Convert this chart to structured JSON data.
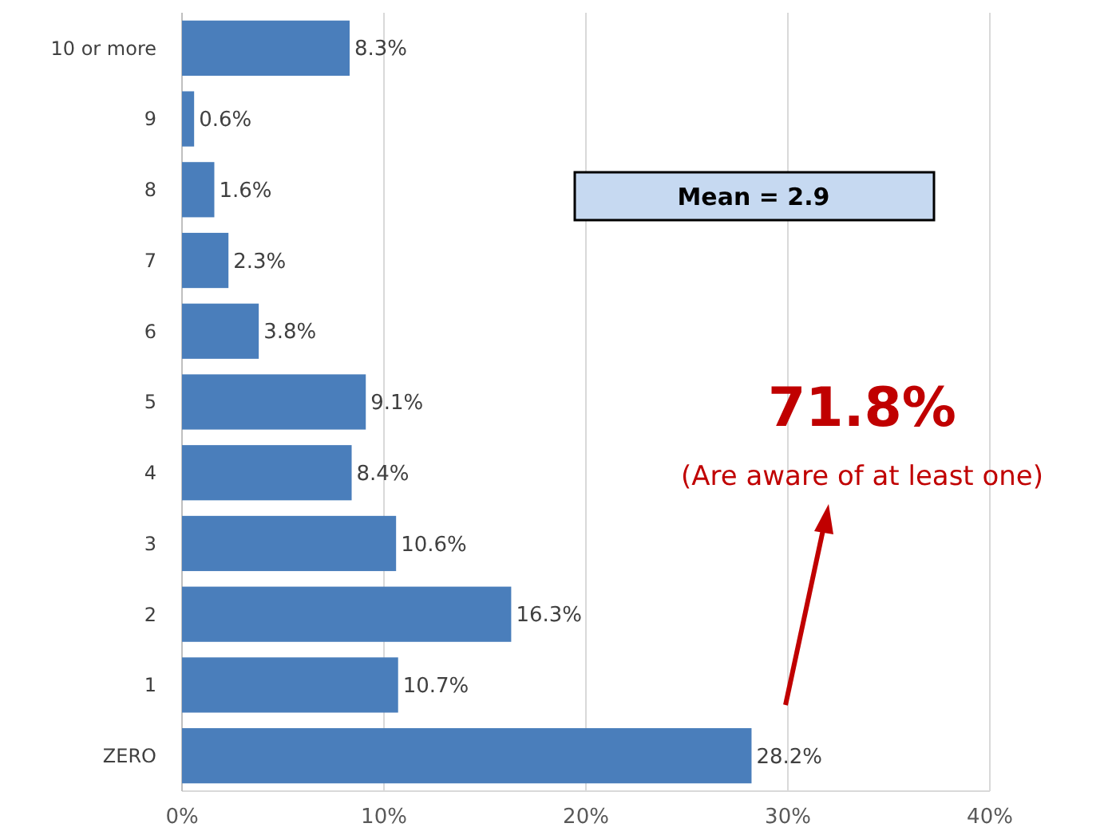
{
  "chart_data": {
    "type": "bar",
    "orientation": "horizontal",
    "categories": [
      "10 or more",
      "9",
      "8",
      "7",
      "6",
      "5",
      "4",
      "3",
      "2",
      "1",
      "ZERO"
    ],
    "values": [
      8.3,
      0.6,
      1.6,
      2.3,
      3.8,
      9.1,
      8.4,
      10.6,
      16.3,
      10.7,
      28.2
    ],
    "value_labels": [
      "8.3%",
      "0.6%",
      "1.6%",
      "2.3%",
      "3.8%",
      "9.1%",
      "8.4%",
      "10.6%",
      "16.3%",
      "10.7%",
      "28.2%"
    ],
    "color": "#4a7ebb",
    "xlim": [
      0,
      40
    ],
    "xticks": [
      {
        "value": 0,
        "label": "0%"
      },
      {
        "value": 10,
        "label": "10%"
      },
      {
        "value": 20,
        "label": "20%"
      },
      {
        "value": 30,
        "label": "30%"
      },
      {
        "value": 40,
        "label": "40%"
      }
    ],
    "grid": "x",
    "annotations": [
      "Mean = 2.9",
      "71.8%",
      "(Are aware of at least one)"
    ]
  }
}
